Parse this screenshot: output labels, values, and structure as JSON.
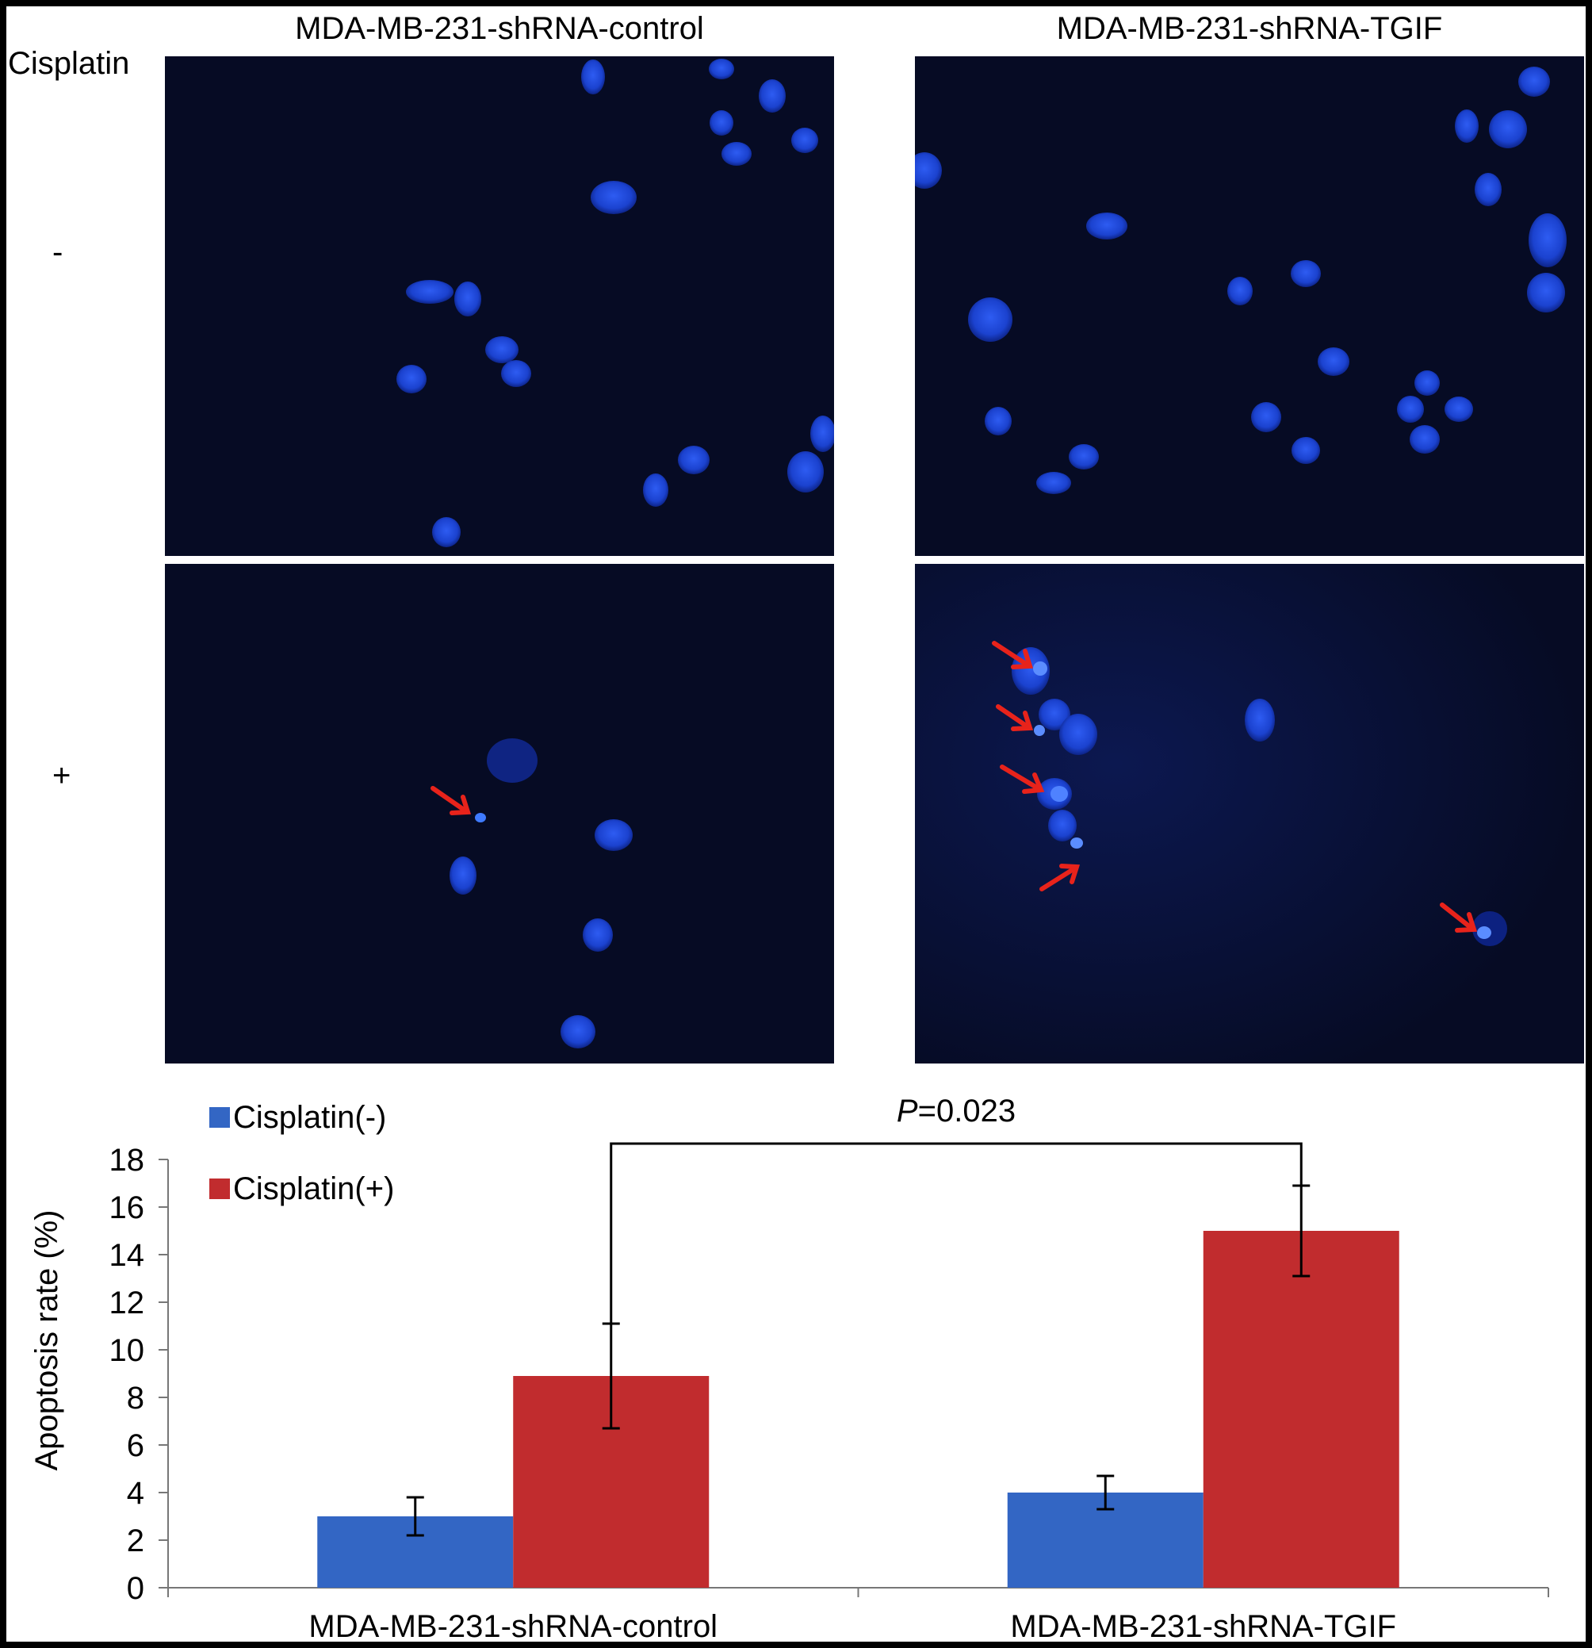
{
  "figure": {
    "columns": [
      "MDA-MB-231-shRNA-control",
      "MDA-MB-231-shRNA-TGIF"
    ],
    "row_header": "Cisplatin",
    "rows": [
      "-",
      "+"
    ]
  },
  "colors": {
    "cisplatin_neg": "#3366c4",
    "cisplatin_pos": "#c12c2e",
    "micrograph_bg": "#060b24",
    "nucleus": "#1d46d6",
    "arrow": "#e8231b"
  },
  "icons": {
    "apoptosis_marker": "red-arrow-icon"
  },
  "chart_data": {
    "type": "bar",
    "categories": [
      "MDA-MB-231-shRNA-control",
      "MDA-MB-231-shRNA-TGIF"
    ],
    "series": [
      {
        "name": "Cisplatin(-)",
        "values": [
          3.0,
          4.0
        ],
        "errors": [
          0.8,
          0.7
        ]
      },
      {
        "name": "Cisplatin(+)",
        "values": [
          8.9,
          15.0
        ],
        "errors": [
          2.2,
          1.9
        ]
      }
    ],
    "ylabel": "Apoptosis rate (%)",
    "ylim": [
      0,
      18
    ],
    "yticks": [
      0,
      2,
      4,
      6,
      8,
      10,
      12,
      14,
      16,
      18
    ],
    "legend_position": "top-left",
    "grid": false,
    "annotation": {
      "label_italic": "P",
      "label_rest": "=0.023",
      "between": [
        "MDA-MB-231-shRNA-control Cisplatin(+)",
        "MDA-MB-231-shRNA-TGIF Cisplatin(+)"
      ]
    }
  }
}
